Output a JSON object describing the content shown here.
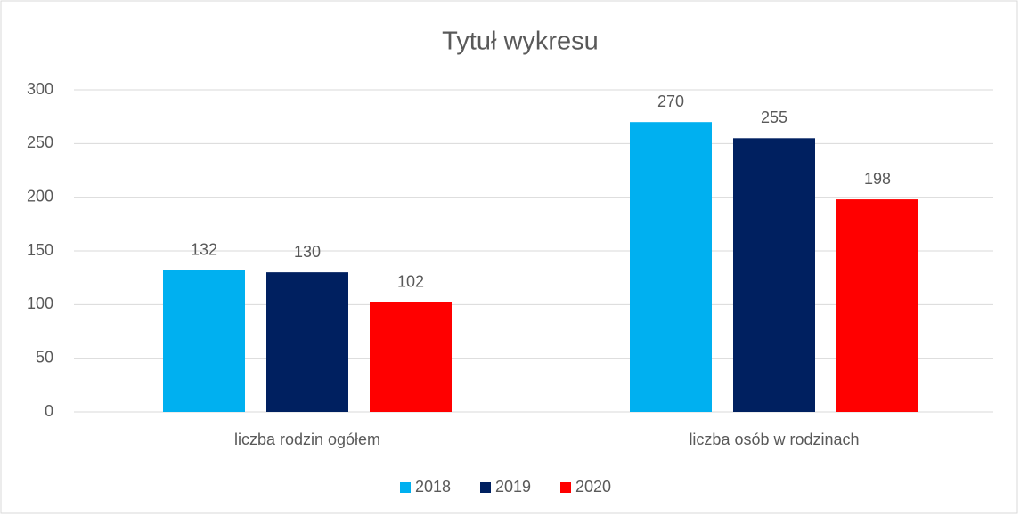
{
  "chart_data": {
    "type": "bar",
    "title": "Tytuł wykresu",
    "categories": [
      "liczba rodzin ogółem",
      "liczba osób w rodzinach"
    ],
    "series": [
      {
        "name": "2018",
        "color": "#00b0f0",
        "values": [
          132,
          270
        ]
      },
      {
        "name": "2019",
        "color": "#002060",
        "values": [
          130,
          255
        ]
      },
      {
        "name": "2020",
        "color": "#ff0000",
        "values": [
          102,
          198
        ]
      }
    ],
    "ylim": [
      0,
      300
    ],
    "yticks": [
      0,
      50,
      100,
      150,
      200,
      250,
      300
    ],
    "grid": true,
    "legend": "bottom"
  }
}
